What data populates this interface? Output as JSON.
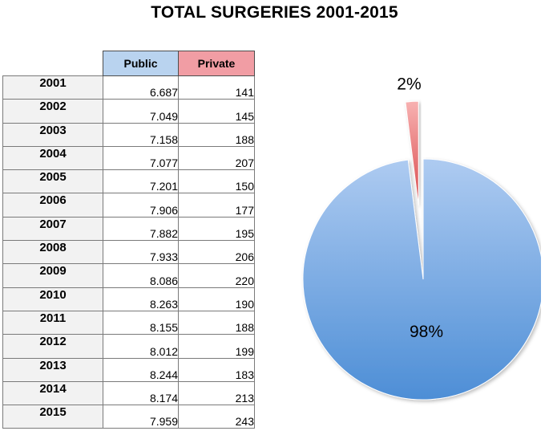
{
  "chart_data": [
    {
      "type": "table",
      "columns": [
        "",
        "Public",
        "Private"
      ],
      "rows": [
        {
          "year": "2001",
          "public": "6.687",
          "private": "141"
        },
        {
          "year": "2002",
          "public": "7.049",
          "private": "145"
        },
        {
          "year": "2003",
          "public": "7.158",
          "private": "188"
        },
        {
          "year": "2004",
          "public": "7.077",
          "private": "207"
        },
        {
          "year": "2005",
          "public": "7.201",
          "private": "150"
        },
        {
          "year": "2006",
          "public": "7.906",
          "private": "177"
        },
        {
          "year": "2007",
          "public": "7.882",
          "private": "195"
        },
        {
          "year": "2008",
          "public": "7.933",
          "private": "206"
        },
        {
          "year": "2009",
          "public": "8.086",
          "private": "220"
        },
        {
          "year": "2010",
          "public": "8.263",
          "private": "190"
        },
        {
          "year": "2011",
          "public": "8.155",
          "private": "188"
        },
        {
          "year": "2012",
          "public": "8.012",
          "private": "199"
        },
        {
          "year": "2013",
          "public": "8.244",
          "private": "183"
        },
        {
          "year": "2014",
          "public": "8.174",
          "private": "213"
        },
        {
          "year": "2015",
          "public": "7.959",
          "private": "243"
        }
      ]
    },
    {
      "type": "pie",
      "title": "TOTAL SURGERIES 2001-2015",
      "slices": [
        {
          "label": "98%",
          "value": 98,
          "color_top": "#aecbf1",
          "color_bottom": "#4d8ed6"
        },
        {
          "label": "2%",
          "value": 2,
          "color_top": "#f7b1b1",
          "color_bottom": "#d9494b",
          "exploded": true
        }
      ],
      "legend": "none"
    }
  ]
}
